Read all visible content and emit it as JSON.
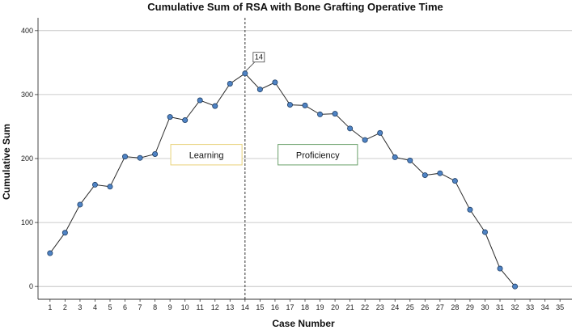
{
  "chart_data": {
    "type": "line",
    "title": "Cumulative Sum of RSA with Bone Grafting Operative Time",
    "xlabel": "Case Number",
    "ylabel": "Cumulative Sum",
    "x": [
      1,
      2,
      3,
      4,
      5,
      6,
      7,
      8,
      9,
      10,
      11,
      12,
      13,
      14,
      15,
      16,
      17,
      18,
      19,
      20,
      21,
      22,
      23,
      24,
      25,
      26,
      27,
      28,
      29,
      30,
      31,
      32
    ],
    "values": [
      52,
      84,
      128,
      159,
      156,
      203,
      201,
      207,
      265,
      260,
      291,
      282,
      317,
      333,
      308,
      319,
      284,
      283,
      269,
      270,
      247,
      229,
      240,
      202,
      197,
      174,
      177,
      165,
      120,
      85,
      28,
      0
    ],
    "x_ticks": [
      "1",
      "2",
      "3",
      "4",
      "5",
      "6",
      "7",
      "8",
      "9",
      "10",
      "11",
      "12",
      "13",
      "14",
      "15",
      "16",
      "17",
      "18",
      "19",
      "20",
      "21",
      "22",
      "23",
      "24",
      "25",
      "26",
      "27",
      "28",
      "29",
      "30",
      "31",
      "32",
      "33",
      "34",
      "35"
    ],
    "y_ticks": [
      "0",
      "100",
      "200",
      "300",
      "400"
    ],
    "xlim": [
      0.2,
      35.8
    ],
    "ylim": [
      -20,
      420
    ],
    "grid": true,
    "annotations": {
      "vertical_line_x": 14,
      "callout": "14",
      "phases": [
        "Learning",
        "Proficiency"
      ]
    },
    "colors": {
      "line": "#2b2b2b",
      "marker_fill": "#4f83c4",
      "marker_edge": "#1f3f66",
      "grid": "#bbbbbb",
      "learning_border": "#e8d27a",
      "proficiency_border": "#6aa06a"
    }
  }
}
